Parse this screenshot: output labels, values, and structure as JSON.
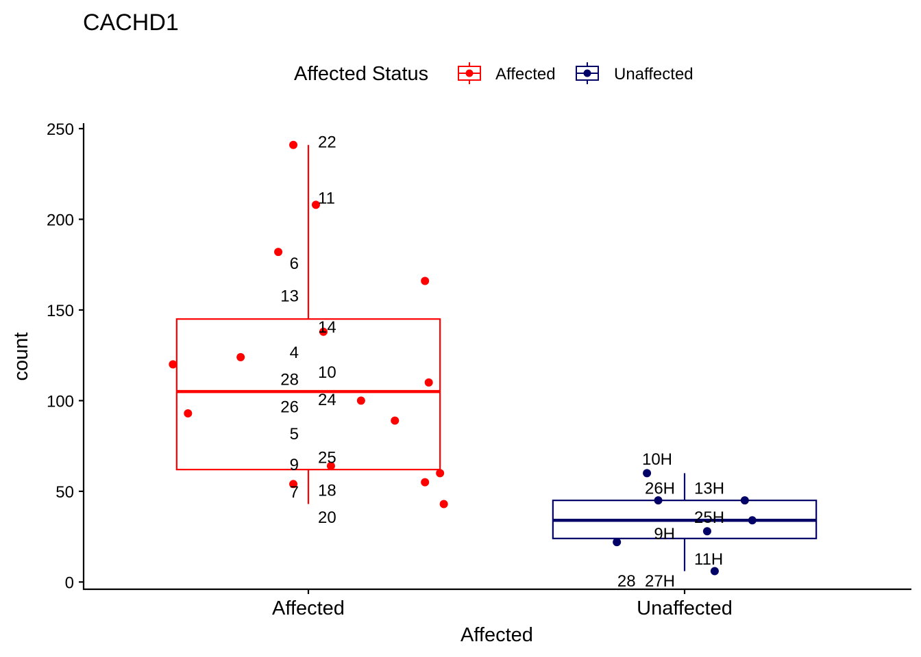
{
  "chart_data": {
    "type": "boxplot",
    "title": "CACHD1",
    "xlabel": "Affected",
    "ylabel": "count",
    "ylim": [
      -4,
      253
    ],
    "yticks": [
      0,
      50,
      100,
      150,
      200,
      250
    ],
    "legend": {
      "title": "Affected Status",
      "position": "top",
      "entries": [
        "Affected",
        "Unaffected"
      ]
    },
    "colors": {
      "Affected": "#ff0000",
      "Unaffected": "#000066"
    },
    "categories": [
      "Affected",
      "Unaffected"
    ],
    "groups": [
      {
        "name": "Affected",
        "color": "#ff0000",
        "box": {
          "whisker_low": 43,
          "q1": 62,
          "median": 105,
          "q3": 145,
          "whisker_high": 241
        },
        "points": [
          {
            "label": "22",
            "y": 241,
            "jitter": -0.04
          },
          {
            "label": "11",
            "y": 208,
            "jitter": 0.02
          },
          {
            "label": "6",
            "y": 182,
            "jitter": -0.08
          },
          {
            "label": "13",
            "y": 166,
            "jitter": 0.31
          },
          {
            "label": "14",
            "y": 138,
            "jitter": 0.04
          },
          {
            "label": "4",
            "y": 124,
            "jitter": -0.18
          },
          {
            "label": "10",
            "y": 110,
            "jitter": 0.32
          },
          {
            "label": "28",
            "y": 120,
            "jitter": -0.36
          },
          {
            "label": "24",
            "y": 100,
            "jitter": 0.14
          },
          {
            "label": "26",
            "y": 93,
            "jitter": -0.32
          },
          {
            "label": "5",
            "y": 89,
            "jitter": 0.23
          },
          {
            "label": "25",
            "y": 64,
            "jitter": 0.06
          },
          {
            "label": "9",
            "y": 60,
            "jitter": 0.35
          },
          {
            "label": "18",
            "y": 55,
            "jitter": 0.31
          },
          {
            "label": "7",
            "y": 54,
            "jitter": -0.04
          },
          {
            "label": "20",
            "y": 43,
            "jitter": 0.36
          }
        ],
        "labels": [
          {
            "text": "22",
            "y": 243,
            "side": "right"
          },
          {
            "text": "11",
            "y": 212,
            "side": "right"
          },
          {
            "text": "6",
            "y": 176,
            "side": "left"
          },
          {
            "text": "13",
            "y": 158,
            "side": "left"
          },
          {
            "text": "14",
            "y": 141,
            "side": "right"
          },
          {
            "text": "4",
            "y": 127,
            "side": "left"
          },
          {
            "text": "10",
            "y": 116,
            "side": "right"
          },
          {
            "text": "28",
            "y": 112,
            "side": "left"
          },
          {
            "text": "24",
            "y": 101,
            "side": "right"
          },
          {
            "text": "26",
            "y": 97,
            "side": "left"
          },
          {
            "text": "5",
            "y": 82,
            "side": "left"
          },
          {
            "text": "25",
            "y": 69,
            "side": "right"
          },
          {
            "text": "9",
            "y": 65,
            "side": "left"
          },
          {
            "text": "18",
            "y": 51,
            "side": "right"
          },
          {
            "text": "7",
            "y": 50,
            "side": "left"
          },
          {
            "text": "20",
            "y": 36,
            "side": "right"
          }
        ]
      },
      {
        "name": "Unaffected",
        "color": "#000066",
        "box": {
          "whisker_low": 6,
          "q1": 24,
          "median": 34,
          "q3": 45,
          "whisker_high": 60
        },
        "points": [
          {
            "label": "10H",
            "y": 60,
            "jitter": -0.1
          },
          {
            "label": "26H",
            "y": 45,
            "jitter": -0.07
          },
          {
            "label": "13H",
            "y": 45,
            "jitter": 0.16
          },
          {
            "label": "25H",
            "y": 34,
            "jitter": 0.18
          },
          {
            "label": "9H",
            "y": 28,
            "jitter": 0.06
          },
          {
            "label": "28_27H",
            "y": 22,
            "jitter": -0.18
          },
          {
            "label": "11H",
            "y": 6,
            "jitter": 0.08
          }
        ],
        "labels": [
          {
            "text": "10H",
            "y": 68,
            "side": "center-left"
          },
          {
            "text": "26H",
            "y": 52,
            "side": "left"
          },
          {
            "text": "13H",
            "y": 52,
            "side": "right"
          },
          {
            "text": "25H",
            "y": 36,
            "side": "right"
          },
          {
            "text": "9H",
            "y": 27,
            "side": "left"
          },
          {
            "text": "11H",
            "y": 13,
            "side": "right"
          },
          {
            "text": "28_27H",
            "y": 1,
            "side": "left"
          }
        ]
      }
    ]
  }
}
